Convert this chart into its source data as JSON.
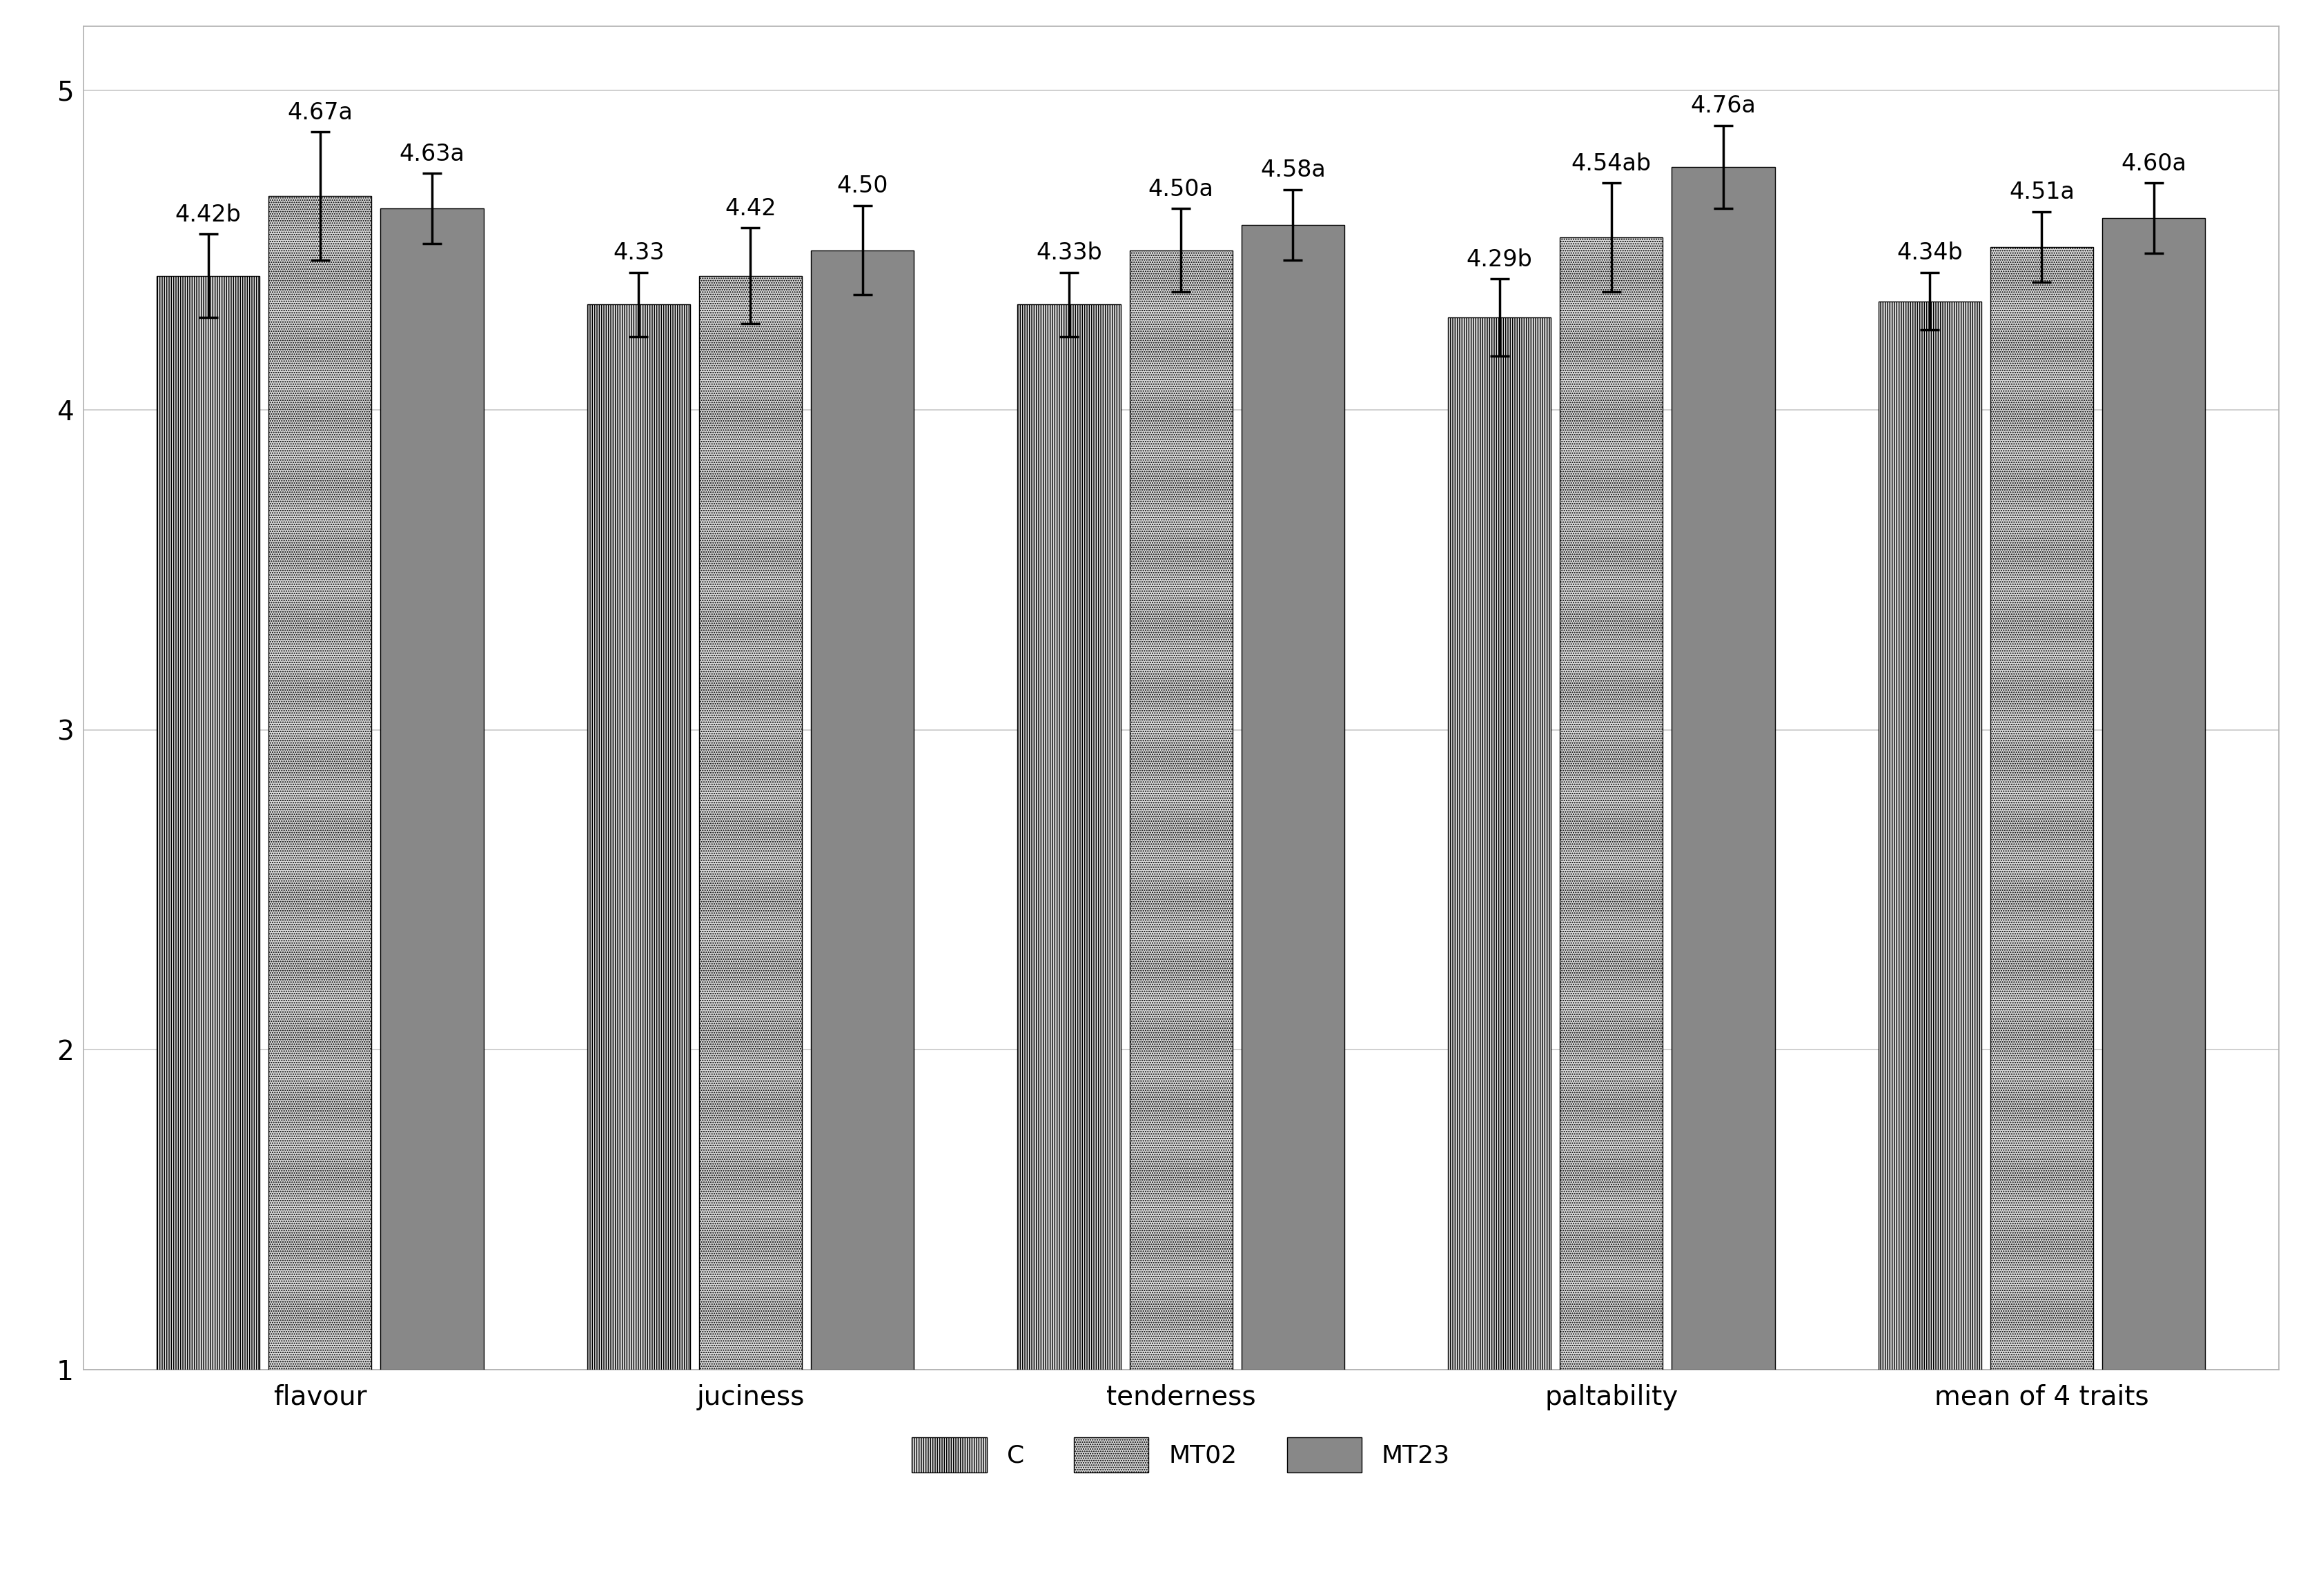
{
  "categories": [
    "flavour",
    "juciness",
    "tenderness",
    "paltability",
    "mean of 4 traits"
  ],
  "series": {
    "C": {
      "values": [
        4.42,
        4.33,
        4.33,
        4.29,
        4.34
      ],
      "errors": [
        0.13,
        0.1,
        0.1,
        0.12,
        0.09
      ],
      "labels": [
        "4.42b",
        "4.33",
        "4.33b",
        "4.29b",
        "4.34b"
      ]
    },
    "MT02": {
      "values": [
        4.67,
        4.42,
        4.5,
        4.54,
        4.51
      ],
      "errors": [
        0.2,
        0.15,
        0.13,
        0.17,
        0.11
      ],
      "labels": [
        "4.67a",
        "4.42",
        "4.50a",
        "4.54ab",
        "4.51a"
      ]
    },
    "MT23": {
      "values": [
        4.63,
        4.5,
        4.58,
        4.76,
        4.6
      ],
      "errors": [
        0.11,
        0.14,
        0.11,
        0.13,
        0.11
      ],
      "labels": [
        "4.63a",
        "4.50",
        "4.58a",
        "4.76a",
        "4.60a"
      ]
    }
  },
  "ylim": [
    1,
    5
  ],
  "yticks": [
    1,
    2,
    3,
    4,
    5
  ],
  "bar_width": 0.26,
  "background_color": "#ffffff",
  "plot_bg_color": "#ffffff",
  "grid_color": "#c8c8c8",
  "bar_edge_color": "#000000",
  "tick_fontsize": 28,
  "legend_fontsize": 26,
  "annotation_fontsize": 24,
  "hatch_C": "|||||",
  "hatch_MT02": ".....",
  "hatch_MT23": "=====",
  "color_C": "#d8d8d8",
  "color_MT02": "#d8d8d8",
  "color_MT23": "#888888",
  "border_color": "#b0b0b0"
}
